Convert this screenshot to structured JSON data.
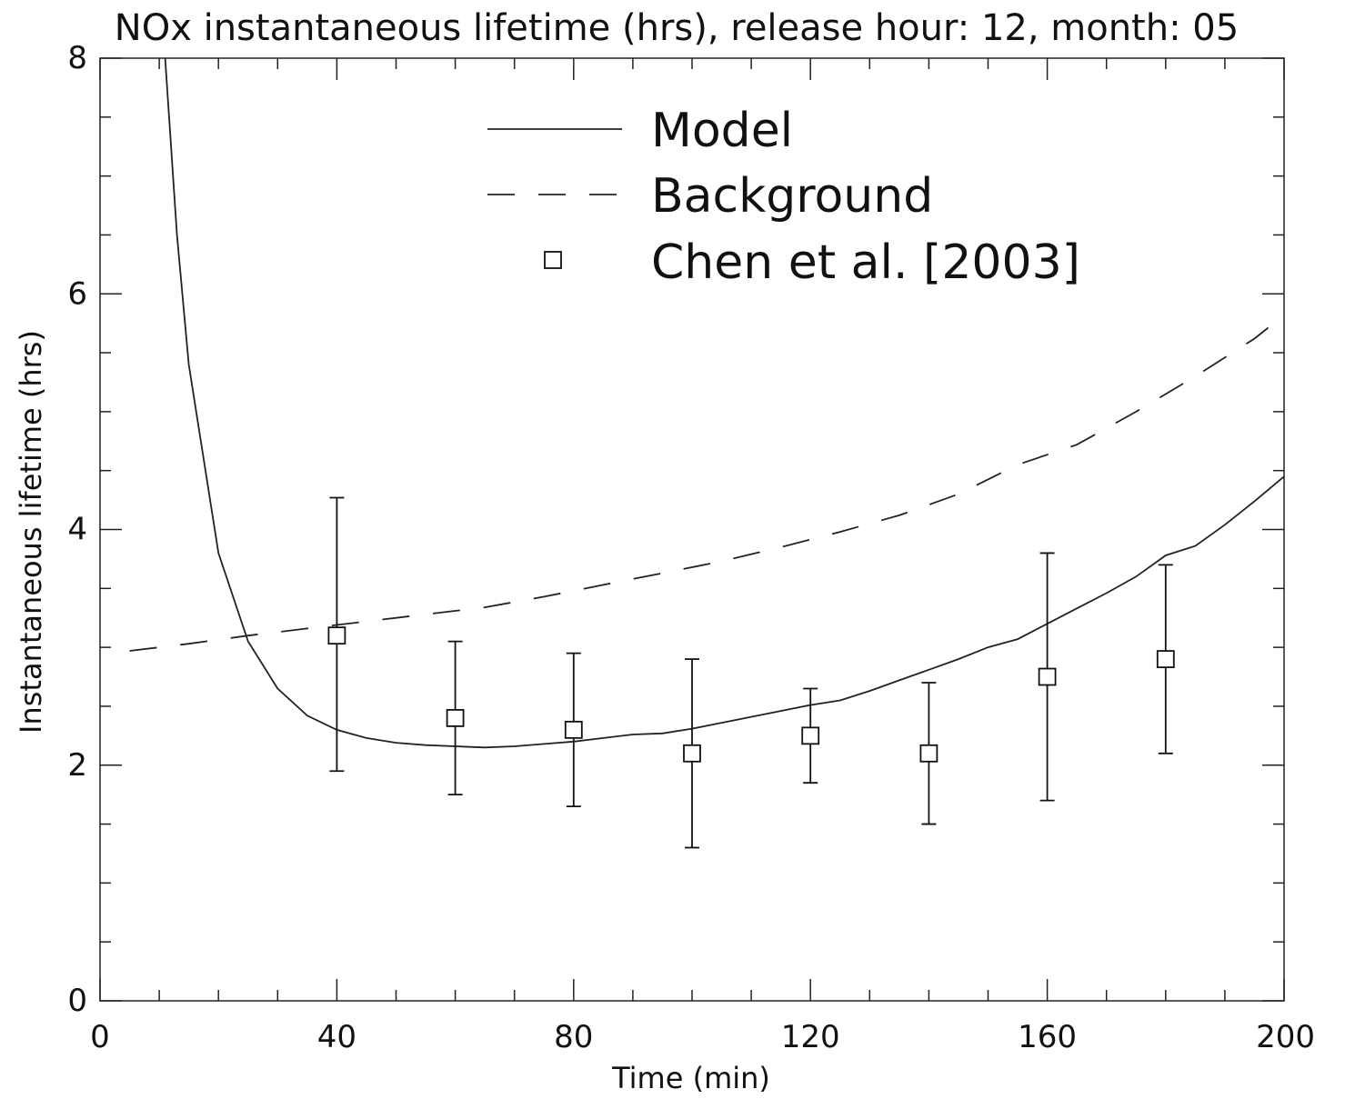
{
  "chart_data": {
    "type": "line",
    "title": "NOx instantaneous lifetime (hrs), release hour: 12, month: 05",
    "xlabel": "Time (min)",
    "ylabel": "Instantaneous lifetime (hrs)",
    "xlim": [
      0,
      200
    ],
    "ylim": [
      0,
      8
    ],
    "xticks": [
      0,
      40,
      80,
      120,
      160,
      200
    ],
    "xtick_labels": [
      "0",
      "40",
      "80",
      "120",
      "160",
      "200"
    ],
    "yticks": [
      0,
      2,
      4,
      6,
      8
    ],
    "ytick_labels": [
      "0",
      "2",
      "4",
      "6",
      "8"
    ],
    "grid": false,
    "legend_position": "top-center",
    "series": [
      {
        "name": "Model",
        "style": "solid",
        "color": "#222222",
        "x": [
          11,
          13,
          15,
          20,
          25,
          30,
          35,
          40,
          45,
          50,
          55,
          60,
          65,
          70,
          75,
          80,
          85,
          90,
          95,
          100,
          105,
          110,
          115,
          120,
          125,
          130,
          135,
          140,
          145,
          150,
          155,
          160,
          165,
          170,
          175,
          180,
          185,
          190,
          195,
          200
        ],
        "y": [
          8.0,
          6.5,
          5.4,
          3.8,
          3.05,
          2.65,
          2.42,
          2.3,
          2.23,
          2.19,
          2.17,
          2.16,
          2.15,
          2.16,
          2.18,
          2.2,
          2.23,
          2.26,
          2.27,
          2.31,
          2.36,
          2.41,
          2.46,
          2.51,
          2.55,
          2.63,
          2.72,
          2.81,
          2.9,
          3.0,
          3.07,
          3.2,
          3.33,
          3.46,
          3.6,
          3.78,
          3.86,
          4.04,
          4.24,
          4.45
        ]
      },
      {
        "name": "Background",
        "style": "dashed",
        "color": "#222222",
        "x": [
          5,
          15,
          25,
          35,
          45,
          55,
          65,
          75,
          85,
          95,
          105,
          115,
          125,
          135,
          145,
          155,
          165,
          175,
          185,
          195,
          200
        ],
        "y": [
          2.97,
          3.03,
          3.1,
          3.16,
          3.22,
          3.28,
          3.34,
          3.43,
          3.53,
          3.63,
          3.73,
          3.85,
          3.98,
          4.12,
          4.3,
          4.55,
          4.72,
          5.0,
          5.3,
          5.62,
          5.82
        ]
      },
      {
        "name": "Chen et al. [2003]",
        "style": "markers",
        "marker": "square",
        "color": "#111111",
        "x": [
          40,
          60,
          80,
          100,
          120,
          140,
          160,
          180
        ],
        "y": [
          3.1,
          2.4,
          2.3,
          2.1,
          2.25,
          2.1,
          2.75,
          2.9
        ],
        "y_low": [
          1.95,
          1.75,
          1.65,
          1.3,
          1.85,
          1.5,
          1.7,
          2.1
        ],
        "y_high": [
          4.27,
          3.05,
          2.95,
          2.9,
          2.65,
          2.7,
          3.8,
          3.7
        ]
      }
    ]
  }
}
